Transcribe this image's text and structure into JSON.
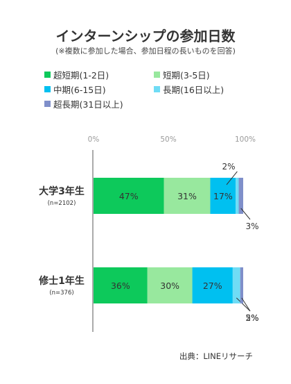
{
  "chart_data": {
    "type": "bar",
    "orientation": "horizontal",
    "stacked": true,
    "title": "インターンシップの参加日数",
    "subtitle": "(※複数に参加した場合、参加日程の長いものを回答)",
    "x_ticks": [
      "0%",
      "50%",
      "100%"
    ],
    "xlim": [
      0,
      100
    ],
    "legend_position": "top",
    "categories": [
      {
        "label": "大学3年生",
        "sub": "(n=2102)"
      },
      {
        "label": "修士1年生",
        "sub": "(n=376)"
      }
    ],
    "series": [
      {
        "name": "超短期(1-2日)",
        "color": "#0dc95b",
        "values": [
          47,
          36
        ]
      },
      {
        "name": "短期(3-5日)",
        "color": "#98e89e",
        "values": [
          31,
          30
        ]
      },
      {
        "name": "中期(6-15日)",
        "color": "#00c0f0",
        "values": [
          17,
          27
        ]
      },
      {
        "name": "長期(16日以上)",
        "color": "#6fdcf5",
        "values": [
          2,
          5
        ]
      },
      {
        "name": "超長期(31日以上)",
        "color": "#7f8fca",
        "values": [
          3,
          2
        ]
      }
    ],
    "data_labels": [
      [
        "47%",
        "31%",
        "17%",
        "2%",
        "3%"
      ],
      [
        "36%",
        "30%",
        "27%",
        "5%",
        "2%"
      ]
    ],
    "source": "出典：LINEリサーチ"
  }
}
